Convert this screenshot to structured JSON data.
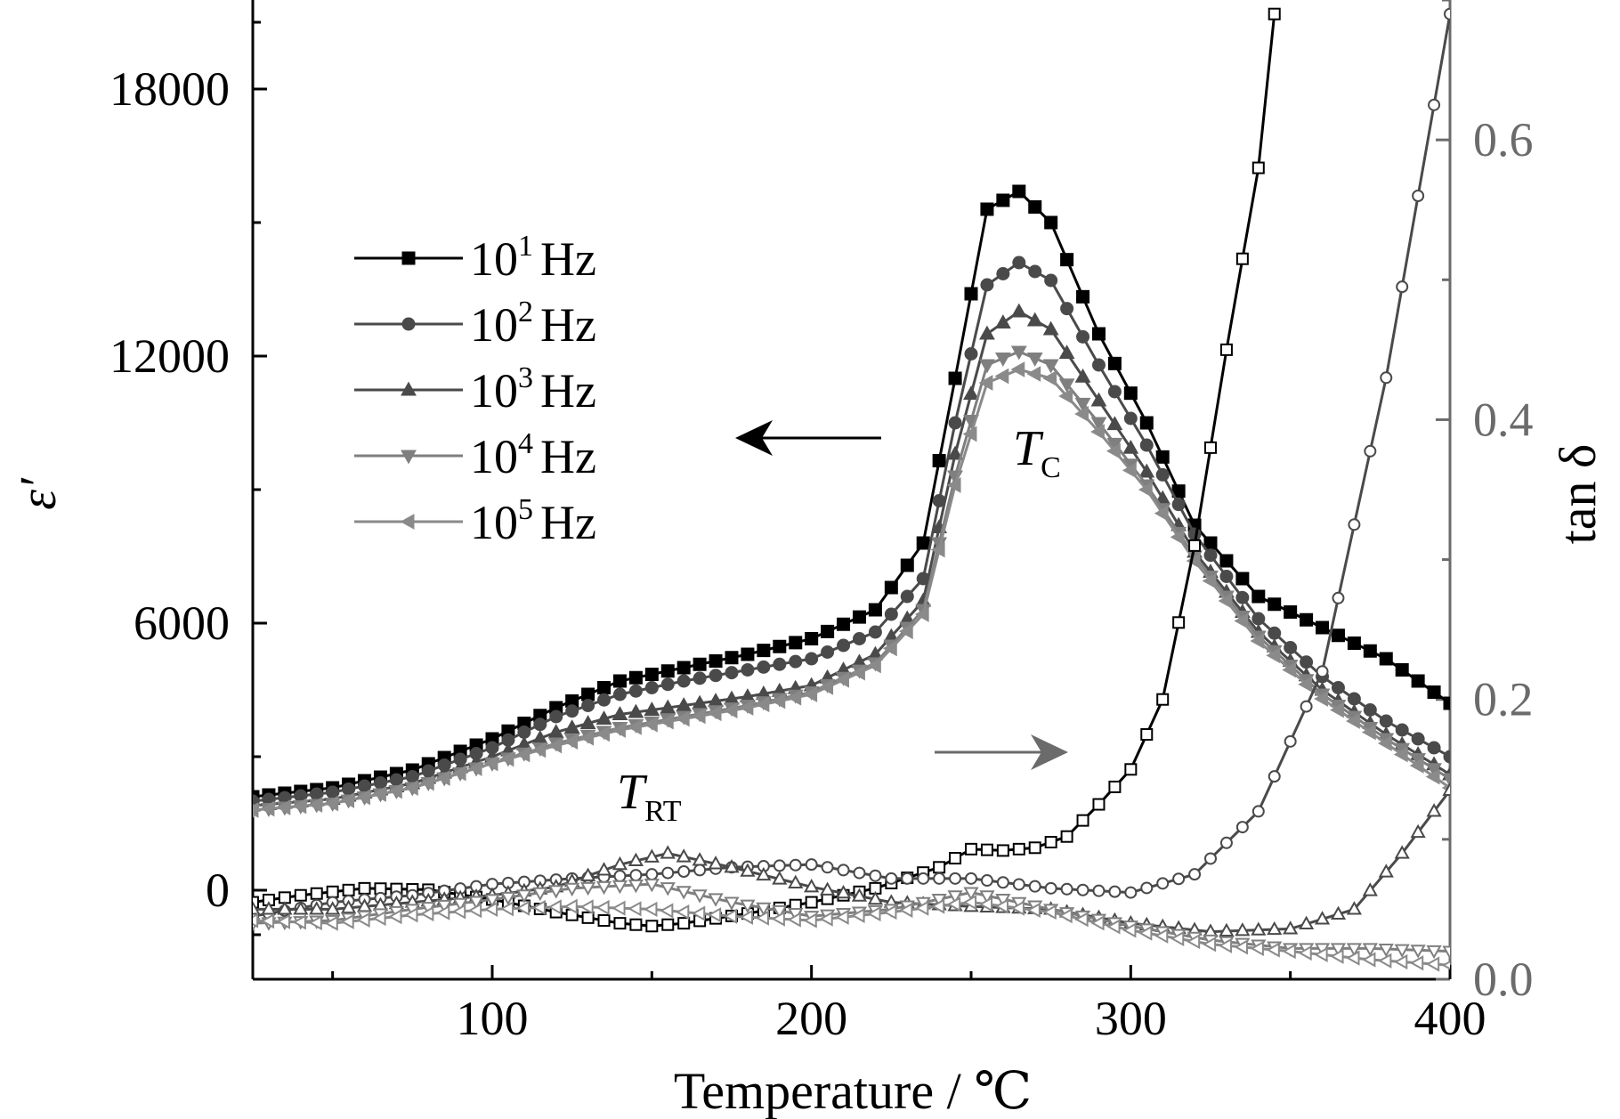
{
  "chart_data": {
    "type": "line",
    "xlabel": "Temperature / ℃",
    "ylabel_left": "ε′",
    "ylabel_right": "tan δ",
    "xlim": [
      25,
      400
    ],
    "ylim_left": [
      -2000,
      20000
    ],
    "ylim_right": [
      0,
      0.7
    ],
    "x_ticks": [
      100,
      200,
      300,
      400
    ],
    "y_ticks_left": [
      0,
      6000,
      12000,
      18000
    ],
    "y_ticks_right": [
      0.0,
      0.2,
      0.4,
      0.6
    ],
    "y_tick_labels_right": [
      "0.0",
      "0.2",
      "0.4",
      "0.6"
    ],
    "grid": false,
    "legend_placement": "upper-left",
    "annotations": {
      "tc": {
        "main": "T",
        "sub": "C"
      },
      "trt": {
        "main": "T",
        "sub": "RT"
      }
    },
    "colors": {
      "black": "#000000",
      "dark_gray": "#4a4a4a",
      "gray": "#6b6b6b",
      "light_gray": "#7f7f7f",
      "lighter_gray": "#8a8a8a"
    },
    "series": [
      {
        "name": "10¹ Hz",
        "legend_base": "10",
        "legend_exp": "1",
        "legend_unit": "Hz",
        "marker": "square",
        "axis": "left",
        "x": [
          25,
          50,
          75,
          100,
          120,
          140,
          160,
          180,
          200,
          220,
          235,
          245,
          255,
          265,
          275,
          290,
          305,
          320,
          340,
          360,
          380,
          400
        ],
        "y": [
          2100,
          2300,
          2700,
          3400,
          4100,
          4700,
          5000,
          5300,
          5650,
          6300,
          7800,
          11500,
          15300,
          15700,
          15000,
          12500,
          10500,
          8200,
          6600,
          5900,
          5200,
          4200
        ]
      },
      {
        "name": "10² Hz",
        "legend_base": "10",
        "legend_exp": "2",
        "legend_unit": "Hz",
        "marker": "circle",
        "axis": "left",
        "x": [
          25,
          50,
          75,
          100,
          120,
          140,
          160,
          180,
          200,
          220,
          235,
          245,
          255,
          265,
          275,
          290,
          305,
          320,
          340,
          360,
          380,
          400
        ],
        "y": [
          2000,
          2200,
          2550,
          3200,
          3900,
          4400,
          4700,
          4950,
          5200,
          5800,
          7000,
          10500,
          13600,
          14100,
          13700,
          11800,
          10000,
          8000,
          6100,
          4800,
          3800,
          3000
        ]
      },
      {
        "name": "10³ Hz",
        "legend_base": "10",
        "legend_exp": "3",
        "legend_unit": "Hz",
        "marker": "triangle-up",
        "axis": "left",
        "x": [
          25,
          50,
          75,
          100,
          120,
          140,
          160,
          180,
          200,
          220,
          235,
          245,
          255,
          265,
          275,
          290,
          305,
          320,
          340,
          360,
          380,
          400
        ],
        "y": [
          1900,
          2050,
          2400,
          3000,
          3550,
          3950,
          4150,
          4350,
          4600,
          5300,
          6500,
          9800,
          12500,
          13000,
          12600,
          11000,
          9400,
          7600,
          5800,
          4500,
          3500,
          2600
        ]
      },
      {
        "name": "10⁴ Hz",
        "legend_base": "10",
        "legend_exp": "4",
        "legend_unit": "Hz",
        "marker": "triangle-down",
        "axis": "left",
        "x": [
          25,
          50,
          75,
          100,
          120,
          140,
          160,
          180,
          200,
          220,
          235,
          245,
          255,
          265,
          275,
          290,
          305,
          320,
          340,
          360,
          380,
          400
        ],
        "y": [
          1800,
          1950,
          2300,
          2850,
          3300,
          3650,
          3900,
          4150,
          4450,
          5100,
          6300,
          9300,
          11800,
          12100,
          11800,
          10500,
          9100,
          7500,
          5700,
          4400,
          3400,
          2500
        ]
      },
      {
        "name": "10⁵ Hz",
        "legend_base": "10",
        "legend_exp": "5",
        "legend_unit": "Hz",
        "marker": "triangle-left",
        "axis": "left",
        "x": [
          25,
          50,
          75,
          100,
          120,
          140,
          160,
          180,
          200,
          220,
          235,
          245,
          255,
          265,
          275,
          290,
          305,
          320,
          340,
          360,
          380,
          400
        ],
        "y": [
          1800,
          1950,
          2300,
          2850,
          3250,
          3600,
          3850,
          4100,
          4400,
          5050,
          6200,
          9100,
          11400,
          11700,
          11500,
          10300,
          9000,
          7400,
          5600,
          4300,
          3300,
          2300
        ]
      },
      {
        "name": "tan δ 10¹ Hz",
        "marker": "square-open",
        "axis": "right",
        "x": [
          25,
          40,
          60,
          80,
          100,
          120,
          140,
          150,
          160,
          180,
          200,
          220,
          240,
          250,
          260,
          270,
          280,
          290,
          300,
          310,
          320,
          330,
          340,
          345
        ],
        "y": [
          0.055,
          0.06,
          0.065,
          0.064,
          0.057,
          0.048,
          0.04,
          0.038,
          0.04,
          0.047,
          0.055,
          0.065,
          0.08,
          0.093,
          0.092,
          0.094,
          0.102,
          0.125,
          0.15,
          0.2,
          0.31,
          0.45,
          0.58,
          0.69
        ]
      },
      {
        "name": "tan δ 10² Hz",
        "marker": "circle-open",
        "axis": "right",
        "x": [
          25,
          50,
          75,
          100,
          125,
          150,
          175,
          200,
          225,
          250,
          275,
          300,
          320,
          340,
          360,
          380,
          400
        ],
        "y": [
          0.045,
          0.055,
          0.06,
          0.068,
          0.072,
          0.075,
          0.08,
          0.082,
          0.072,
          0.072,
          0.065,
          0.062,
          0.075,
          0.12,
          0.22,
          0.43,
          0.69
        ]
      },
      {
        "name": "tan δ 10³ Hz",
        "marker": "triangle-up-open",
        "axis": "right",
        "x": [
          25,
          50,
          75,
          100,
          120,
          140,
          155,
          175,
          200,
          225,
          250,
          275,
          300,
          325,
          350,
          370,
          385,
          400
        ],
        "y": [
          0.05,
          0.05,
          0.055,
          0.06,
          0.066,
          0.082,
          0.09,
          0.08,
          0.066,
          0.055,
          0.052,
          0.05,
          0.04,
          0.034,
          0.036,
          0.05,
          0.09,
          0.135
        ]
      },
      {
        "name": "tan δ 10⁴ Hz",
        "marker": "triangle-down-open",
        "axis": "right",
        "x": [
          25,
          50,
          75,
          100,
          125,
          150,
          175,
          200,
          225,
          250,
          275,
          300,
          325,
          350,
          375,
          400
        ],
        "y": [
          0.04,
          0.042,
          0.05,
          0.057,
          0.065,
          0.068,
          0.055,
          0.045,
          0.05,
          0.062,
          0.05,
          0.038,
          0.028,
          0.022,
          0.022,
          0.02
        ]
      },
      {
        "name": "tan δ 10⁵ Hz",
        "marker": "triangle-left-open",
        "axis": "right",
        "x": [
          25,
          50,
          75,
          100,
          125,
          150,
          175,
          200,
          225,
          250,
          275,
          300,
          325,
          350,
          375,
          400
        ],
        "y": [
          0.042,
          0.04,
          0.046,
          0.05,
          0.052,
          0.05,
          0.045,
          0.042,
          0.048,
          0.055,
          0.048,
          0.035,
          0.025,
          0.02,
          0.014,
          0.01
        ]
      }
    ]
  }
}
